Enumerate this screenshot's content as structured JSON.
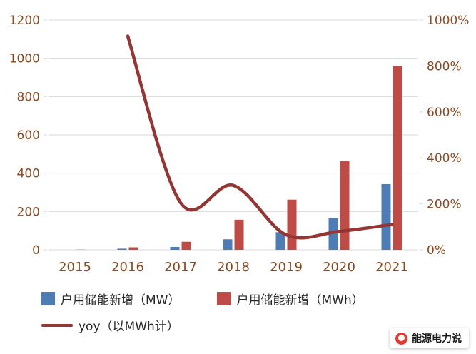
{
  "chart_data": {
    "type": "bar+line",
    "title": "",
    "categories": [
      "2015",
      "2016",
      "2017",
      "2018",
      "2019",
      "2020",
      "2021"
    ],
    "series": [
      {
        "name": "户用储能新增（MW）",
        "type": "bar",
        "axis": "left",
        "color": "#4e7db5",
        "values": [
          0,
          6,
          15,
          55,
          92,
          165,
          343
        ]
      },
      {
        "name": "户用储能新增（MWh）",
        "type": "bar",
        "axis": "left",
        "color": "#bf4b47",
        "values": [
          1,
          13,
          42,
          157,
          262,
          462,
          960
        ]
      },
      {
        "name": "yoy（以MWh计）",
        "type": "line",
        "axis": "right",
        "color": "#943634",
        "values": [
          null,
          930,
          205,
          280,
          65,
          80,
          110
        ]
      }
    ],
    "left_axis": {
      "min": 0,
      "max": 1200,
      "step": 200,
      "ticks": [
        "0",
        "200",
        "400",
        "600",
        "800",
        "1000",
        "1200"
      ]
    },
    "right_axis": {
      "min": 0,
      "max": 1000,
      "step": 200,
      "ticks": [
        "0%",
        "200%",
        "400%",
        "600%",
        "800%",
        "1000%"
      ]
    },
    "grid": true,
    "legend_position": "bottom"
  },
  "colors": {
    "axis_label": "#8a4a21",
    "gridline": "#d9d9d9",
    "legend_text": "#262626",
    "brand_red": "#e23a2e"
  },
  "watermark": {
    "text": "能源电力说"
  }
}
